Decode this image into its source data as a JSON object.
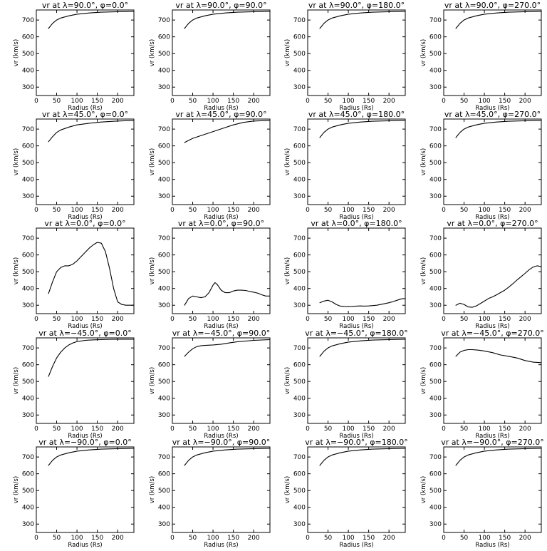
{
  "chart_data": {
    "type": "line",
    "xlabel": "Radius (Rs)",
    "ylabel": "vr (km/s)",
    "xlim": [
      0,
      240
    ],
    "ylim": [
      250,
      760
    ],
    "xticks": [
      "0",
      "50",
      "100",
      "150",
      "200"
    ],
    "yticks": [
      "300",
      "400",
      "500",
      "600",
      "700"
    ],
    "grid": false,
    "panels": [
      {
        "title": "vr at λ=90.0°, φ=0.0°",
        "x": [
          30,
          40,
          50,
          60,
          80,
          100,
          130,
          160,
          200,
          240
        ],
        "y": [
          650,
          680,
          700,
          712,
          725,
          735,
          742,
          747,
          750,
          752
        ]
      },
      {
        "title": "vr at λ=90.0°, φ=90.0°",
        "x": [
          30,
          40,
          50,
          60,
          80,
          100,
          130,
          160,
          200,
          240
        ],
        "y": [
          650,
          680,
          700,
          712,
          725,
          735,
          742,
          747,
          750,
          752
        ]
      },
      {
        "title": "vr at λ=90.0°, φ=180.0°",
        "x": [
          30,
          40,
          50,
          60,
          80,
          100,
          130,
          160,
          200,
          240
        ],
        "y": [
          650,
          680,
          700,
          712,
          725,
          735,
          742,
          747,
          750,
          752
        ]
      },
      {
        "title": "vr at λ=90.0°, φ=270.0°",
        "x": [
          30,
          40,
          50,
          60,
          80,
          100,
          130,
          160,
          200,
          240
        ],
        "y": [
          650,
          680,
          700,
          712,
          725,
          735,
          742,
          747,
          750,
          752
        ]
      },
      {
        "title": "vr at λ=45.0°, φ=0.0°",
        "x": [
          30,
          40,
          50,
          60,
          80,
          100,
          130,
          160,
          200,
          240
        ],
        "y": [
          625,
          655,
          680,
          695,
          712,
          725,
          735,
          742,
          748,
          752
        ]
      },
      {
        "title": "vr at λ=45.0°, φ=90.0°",
        "x": [
          30,
          50,
          75,
          100,
          125,
          150,
          175,
          200,
          240
        ],
        "y": [
          620,
          645,
          665,
          685,
          705,
          725,
          740,
          748,
          752
        ]
      },
      {
        "title": "vr at λ=45.0°, φ=180.0°",
        "x": [
          30,
          40,
          50,
          60,
          80,
          100,
          130,
          160,
          200,
          240
        ],
        "y": [
          650,
          680,
          700,
          712,
          725,
          735,
          742,
          747,
          750,
          752
        ]
      },
      {
        "title": "vr at λ=45.0°, φ=270.0°",
        "x": [
          30,
          40,
          50,
          60,
          80,
          100,
          130,
          160,
          200,
          240
        ],
        "y": [
          650,
          680,
          700,
          712,
          725,
          735,
          742,
          747,
          750,
          752
        ]
      },
      {
        "title": "vr at λ=0.0°, φ=0.0°",
        "x": [
          30,
          40,
          50,
          60,
          70,
          80,
          90,
          100,
          110,
          120,
          130,
          140,
          150,
          160,
          170,
          180,
          190,
          200,
          210,
          220,
          230,
          240
        ],
        "y": [
          370,
          440,
          500,
          525,
          535,
          535,
          545,
          565,
          590,
          615,
          640,
          660,
          675,
          670,
          620,
          520,
          400,
          320,
          305,
          300,
          300,
          300
        ]
      },
      {
        "title": "vr at λ=0.0°, φ=90.0°",
        "x": [
          30,
          40,
          50,
          60,
          70,
          80,
          90,
          100,
          105,
          110,
          120,
          130,
          140,
          150,
          160,
          170,
          180,
          190,
          200,
          210,
          220,
          230,
          240
        ],
        "y": [
          300,
          340,
          355,
          350,
          345,
          350,
          375,
          420,
          435,
          425,
          390,
          375,
          375,
          385,
          390,
          390,
          388,
          382,
          378,
          372,
          362,
          355,
          355
        ]
      },
      {
        "title": "vr at λ=0.0°, φ=180.0°",
        "x": [
          30,
          40,
          50,
          60,
          70,
          80,
          90,
          100,
          110,
          120,
          130,
          140,
          150,
          160,
          170,
          180,
          190,
          200,
          210,
          220,
          230,
          240
        ],
        "y": [
          315,
          325,
          330,
          320,
          305,
          295,
          293,
          292,
          293,
          295,
          296,
          295,
          296,
          298,
          300,
          305,
          310,
          315,
          322,
          330,
          338,
          340
        ]
      },
      {
        "title": "vr at λ=0.0°, φ=270.0°",
        "x": [
          30,
          40,
          50,
          60,
          70,
          80,
          90,
          100,
          110,
          120,
          130,
          140,
          150,
          160,
          170,
          180,
          190,
          200,
          210,
          220,
          230,
          240
        ],
        "y": [
          300,
          312,
          305,
          290,
          288,
          296,
          310,
          325,
          340,
          350,
          362,
          376,
          390,
          408,
          428,
          450,
          470,
          490,
          512,
          528,
          535,
          530
        ]
      },
      {
        "title": "vr at λ=−45.0°, φ=0.0°",
        "x": [
          30,
          40,
          50,
          60,
          70,
          80,
          90,
          100,
          120,
          140,
          160,
          180,
          200,
          240
        ],
        "y": [
          530,
          590,
          640,
          675,
          700,
          718,
          730,
          738,
          745,
          748,
          750,
          751,
          752,
          752
        ]
      },
      {
        "title": "vr at λ=−45.0°, φ=90.0°",
        "x": [
          30,
          40,
          50,
          60,
          70,
          80,
          100,
          120,
          140,
          160,
          200,
          240
        ],
        "y": [
          650,
          675,
          695,
          708,
          713,
          715,
          718,
          722,
          730,
          737,
          745,
          750
        ]
      },
      {
        "title": "vr at λ=−45.0°, φ=180.0°",
        "x": [
          30,
          40,
          50,
          60,
          80,
          100,
          130,
          160,
          200,
          240
        ],
        "y": [
          650,
          680,
          700,
          712,
          725,
          735,
          742,
          747,
          750,
          752
        ]
      },
      {
        "title": "vr at λ=−45.0°, φ=270.0°",
        "x": [
          30,
          40,
          50,
          60,
          70,
          80,
          90,
          100,
          120,
          140,
          160,
          180,
          200,
          220,
          240
        ],
        "y": [
          650,
          675,
          685,
          690,
          690,
          688,
          685,
          682,
          672,
          658,
          650,
          640,
          625,
          615,
          612
        ]
      },
      {
        "title": "vr at λ=−90.0°, φ=0.0°",
        "x": [
          30,
          40,
          50,
          60,
          80,
          100,
          130,
          160,
          200,
          240
        ],
        "y": [
          650,
          680,
          700,
          712,
          725,
          735,
          742,
          747,
          750,
          752
        ]
      },
      {
        "title": "vr at λ=−90.0°, φ=90.0°",
        "x": [
          30,
          40,
          50,
          60,
          80,
          100,
          130,
          160,
          200,
          240
        ],
        "y": [
          650,
          680,
          700,
          712,
          725,
          735,
          742,
          747,
          750,
          752
        ]
      },
      {
        "title": "vr at λ=−90.0°, φ=180.0°",
        "x": [
          30,
          40,
          50,
          60,
          80,
          100,
          130,
          160,
          200,
          240
        ],
        "y": [
          650,
          680,
          700,
          712,
          725,
          735,
          742,
          747,
          750,
          752
        ]
      },
      {
        "title": "vr at λ=−90.0°, φ=270.0°",
        "x": [
          30,
          40,
          50,
          60,
          80,
          100,
          130,
          160,
          200,
          240
        ],
        "y": [
          650,
          680,
          700,
          712,
          725,
          735,
          742,
          747,
          750,
          752
        ]
      }
    ]
  }
}
